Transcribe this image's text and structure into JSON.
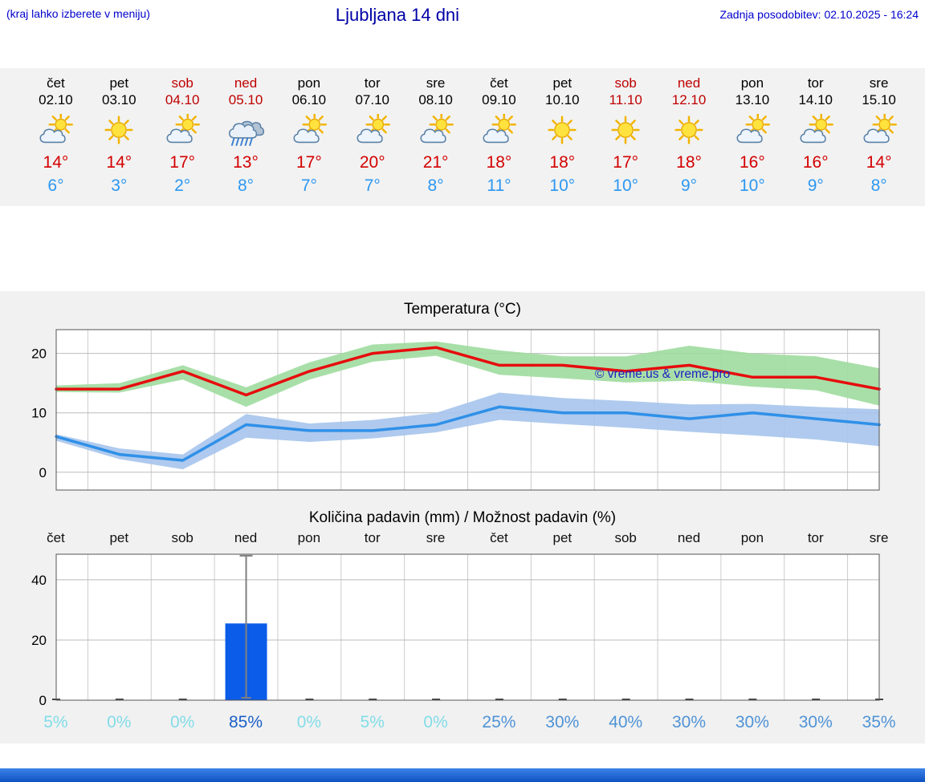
{
  "header": {
    "left_note": "(kraj lahko izberete v meniju)",
    "title": "Ljubljana 14 dni",
    "last_update": "Zadnja posodobitev: 02.10.2025 - 16:24"
  },
  "colors": {
    "accent_blue": "#0000cd",
    "title_blue": "#0000a6",
    "weekend_red": "#c00000",
    "temp_max_red": "#d40000",
    "temp_min_blue": "#2b97f1",
    "strip_bg": "#f2f2f2",
    "charts_bg": "#f1f1f1",
    "bottom_bar_blue": "#1a63d8"
  },
  "forecast": {
    "days": [
      {
        "name": "čet",
        "date": "02.10",
        "weekend": false,
        "icon": "sun-cloud",
        "tmax": "14°",
        "tmin": "6°"
      },
      {
        "name": "pet",
        "date": "03.10",
        "weekend": false,
        "icon": "sun",
        "tmax": "14°",
        "tmin": "3°"
      },
      {
        "name": "sob",
        "date": "04.10",
        "weekend": true,
        "icon": "sun-cloud",
        "tmax": "17°",
        "tmin": "2°"
      },
      {
        "name": "ned",
        "date": "05.10",
        "weekend": true,
        "icon": "rain-cloud",
        "tmax": "13°",
        "tmin": "8°"
      },
      {
        "name": "pon",
        "date": "06.10",
        "weekend": false,
        "icon": "sun-cloud",
        "tmax": "17°",
        "tmin": "7°"
      },
      {
        "name": "tor",
        "date": "07.10",
        "weekend": false,
        "icon": "sun-cloud",
        "tmax": "20°",
        "tmin": "7°"
      },
      {
        "name": "sre",
        "date": "08.10",
        "weekend": false,
        "icon": "sun-cloud",
        "tmax": "21°",
        "tmin": "8°"
      },
      {
        "name": "čet",
        "date": "09.10",
        "weekend": false,
        "icon": "sun-cloud",
        "tmax": "18°",
        "tmin": "11°"
      },
      {
        "name": "pet",
        "date": "10.10",
        "weekend": false,
        "icon": "sun",
        "tmax": "18°",
        "tmin": "10°"
      },
      {
        "name": "sob",
        "date": "11.10",
        "weekend": true,
        "icon": "sun",
        "tmax": "17°",
        "tmin": "10°"
      },
      {
        "name": "ned",
        "date": "12.10",
        "weekend": true,
        "icon": "sun",
        "tmax": "18°",
        "tmin": "9°"
      },
      {
        "name": "pon",
        "date": "13.10",
        "weekend": false,
        "icon": "sun-cloud",
        "tmax": "16°",
        "tmin": "10°"
      },
      {
        "name": "tor",
        "date": "14.10",
        "weekend": false,
        "icon": "sun-cloud",
        "tmax": "16°",
        "tmin": "9°"
      },
      {
        "name": "sre",
        "date": "15.10",
        "weekend": false,
        "icon": "sun-cloud",
        "tmax": "14°",
        "tmin": "8°"
      }
    ]
  },
  "chart_data": [
    {
      "id": "temperature",
      "type": "line",
      "title": "Temperatura (°C)",
      "watermark": "© vreme.us & vreme.pro",
      "x_labels": [
        "02.10",
        "03.10",
        "04.10",
        "05.10",
        "06.10",
        "07.10",
        "08.10",
        "09.10",
        "10.10",
        "11.10",
        "12.10",
        "13.10",
        "14.10",
        "15.10"
      ],
      "ylim": [
        -3,
        24
      ],
      "yticks": [
        0,
        10,
        20
      ],
      "grid": true,
      "legend": "none",
      "series": [
        {
          "name": "max temperature",
          "color": "#e60d0d",
          "band_color": "#9fdb9f",
          "values": [
            14,
            14,
            17,
            13,
            17,
            20,
            21,
            18,
            18,
            17,
            18,
            16,
            16,
            14
          ],
          "band_upper": [
            14.6,
            15,
            18,
            14.3,
            18.5,
            21.5,
            22,
            20.5,
            19.5,
            19.5,
            21.3,
            20,
            19.5,
            17.5
          ],
          "band_lower": [
            13.5,
            13.4,
            15.6,
            11,
            15.6,
            18.6,
            19.6,
            16.4,
            15.8,
            15.1,
            15.4,
            14.4,
            13.8,
            11.2
          ]
        },
        {
          "name": "min temperature",
          "color": "#2f90e8",
          "band_color": "#a6c4ec",
          "values": [
            6,
            3,
            2,
            8,
            7,
            7,
            8,
            11,
            10,
            10,
            9,
            10,
            9,
            8
          ],
          "band_upper": [
            6.4,
            4,
            3,
            9.8,
            8.2,
            8.8,
            10,
            13.4,
            12.5,
            12,
            11.4,
            11.5,
            11,
            10.6
          ],
          "band_lower": [
            5.3,
            2.2,
            0.5,
            5.8,
            5.1,
            5.7,
            6.7,
            8.8,
            8.1,
            7.5,
            6.8,
            6.2,
            5.5,
            4.4
          ]
        }
      ]
    },
    {
      "id": "precipitation",
      "type": "bar",
      "title": "Količina padavin (mm) / Možnost padavin (%)",
      "categories": [
        "čet",
        "pet",
        "sob",
        "ned",
        "pon",
        "tor",
        "sre",
        "čet",
        "pet",
        "sob",
        "ned",
        "pon",
        "tor",
        "sre"
      ],
      "ylim": [
        0,
        48.5
      ],
      "yticks": [
        0,
        20,
        40
      ],
      "bar_color": "#0b5ce8",
      "values_mm": [
        0,
        0,
        0,
        25.5,
        0,
        0,
        0,
        0,
        0,
        0,
        0,
        0,
        0,
        0
      ],
      "whisker": {
        "index": 3,
        "low": 0,
        "high": 48
      },
      "prob_colors": {
        "low": "#82dde8",
        "mid": "#4f93d6",
        "high": "#1a60c8"
      },
      "probability": [
        {
          "label": "5%",
          "level": "low"
        },
        {
          "label": "0%",
          "level": "low"
        },
        {
          "label": "0%",
          "level": "low"
        },
        {
          "label": "85%",
          "level": "high"
        },
        {
          "label": "0%",
          "level": "low"
        },
        {
          "label": "5%",
          "level": "low"
        },
        {
          "label": "0%",
          "level": "low"
        },
        {
          "label": "25%",
          "level": "mid"
        },
        {
          "label": "30%",
          "level": "mid"
        },
        {
          "label": "40%",
          "level": "mid"
        },
        {
          "label": "30%",
          "level": "mid"
        },
        {
          "label": "30%",
          "level": "mid"
        },
        {
          "label": "30%",
          "level": "mid"
        },
        {
          "label": "35%",
          "level": "mid"
        }
      ]
    }
  ]
}
